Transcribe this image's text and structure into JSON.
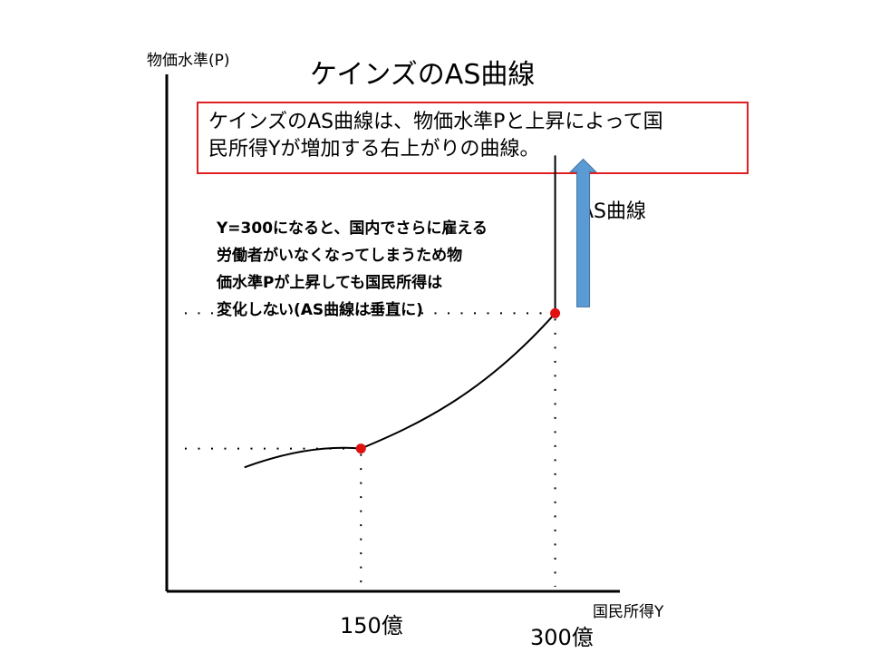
{
  "title": "ケインズのAS曲線",
  "axes": {
    "y_label": "物価水準(P)",
    "x_label": "国民所得Y",
    "x_ticks": [
      "150億",
      "300億"
    ]
  },
  "definition_box": {
    "line1": "ケインズのAS曲線は、物価水準Pと上昇によって国",
    "line2": "民所得Yが増加する右上がりの曲線。"
  },
  "note": {
    "lines": [
      "Y=300になると、国内でさらに雇える",
      "労働者がいなくなってしまうため物",
      "価水準Pが上昇しても国民所得は",
      "変化しない(AS曲線は垂直に)"
    ]
  },
  "curve_label": "AS曲線",
  "colors": {
    "box_border": "#e02020",
    "points": "#e01010",
    "arrow_fill": "#5b9bd5",
    "arrow_stroke": "#41719c"
  },
  "chart_data": {
    "type": "line",
    "series": [
      {
        "name": "AS曲線",
        "points": [
          [
            60,
            0.15
          ],
          [
            150,
            0.4
          ],
          [
            300,
            2.2
          ],
          [
            300,
            4.3
          ]
        ]
      }
    ],
    "marked_points": [
      {
        "x": 150,
        "y": 0.4
      },
      {
        "x": 300,
        "y": 2.2
      }
    ],
    "xlim": [
      0,
      350
    ],
    "ylim": [
      -1.5,
      5.5
    ],
    "xlabel": "国民所得Y",
    "ylabel": "物価水準(P)",
    "tick_labels": [
      "150億",
      "300億"
    ]
  }
}
